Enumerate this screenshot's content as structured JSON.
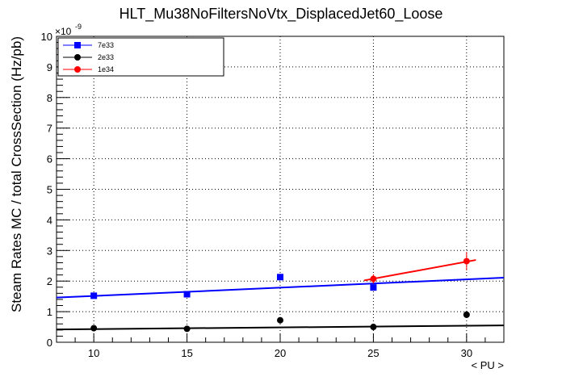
{
  "chart_data": {
    "type": "scatter",
    "title": "HLT_Mu38NoFiltersNoVtx_DisplacedJet60_Loose",
    "xlabel": "< PU >",
    "ylabel": "Steam Rates MC / total CrossSection (Hz/pb)",
    "y_exponent_label": "×10",
    "y_exponent_power": "-9",
    "xlim": [
      8,
      32
    ],
    "ylim": [
      0,
      10
    ],
    "x_ticks": [
      10,
      15,
      20,
      25,
      30
    ],
    "x_tick_labels": [
      "10",
      "15",
      "20",
      "25",
      "30"
    ],
    "y_ticks": [
      0,
      1,
      2,
      3,
      4,
      5,
      6,
      7,
      8,
      9,
      10
    ],
    "y_tick_labels": [
      "0",
      "1",
      "2",
      "3",
      "4",
      "5",
      "6",
      "7",
      "8",
      "9",
      "10"
    ],
    "grid": true,
    "legend_position": "top-left",
    "series": [
      {
        "name": "7e33",
        "color": "#0000ff",
        "marker": "square",
        "x": [
          10,
          15,
          20,
          25
        ],
        "y": [
          1.52,
          1.57,
          2.13,
          1.79
        ],
        "yerr": [
          0.06,
          0.06,
          0.08,
          0.1
        ],
        "fit": {
          "x": [
            8,
            32
          ],
          "y": [
            1.46,
            2.11
          ]
        }
      },
      {
        "name": "2e33",
        "color": "#000000",
        "marker": "circle",
        "x": [
          10,
          15,
          20,
          25,
          30
        ],
        "y": [
          0.46,
          0.44,
          0.72,
          0.5,
          0.9
        ],
        "yerr": [
          0.03,
          0.03,
          0.05,
          0.05,
          0.08
        ],
        "fit": {
          "x": [
            8,
            32
          ],
          "y": [
            0.42,
            0.55
          ]
        }
      },
      {
        "name": "1e34",
        "color": "#ff0000",
        "marker": "circle",
        "x": [
          25,
          30
        ],
        "y": [
          2.07,
          2.65
        ],
        "yerr": [
          0.15,
          0.3
        ],
        "fit": {
          "x": [
            24.5,
            30.5
          ],
          "y": [
            2.02,
            2.69
          ]
        }
      }
    ]
  }
}
